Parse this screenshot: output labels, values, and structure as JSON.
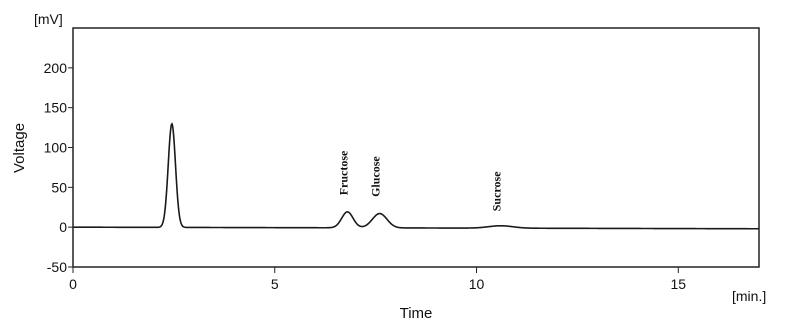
{
  "chart_data": {
    "type": "line",
    "title": "",
    "xlabel": "Time",
    "ylabel": "Voltage",
    "x_unit": "[min.]",
    "y_unit": "[mV]",
    "xlim": [
      0,
      17
    ],
    "ylim": [
      -50,
      250
    ],
    "x_ticks": [
      "0",
      "5",
      "10",
      "15"
    ],
    "y_ticks": [
      "-50",
      "0",
      "50",
      "100",
      "150",
      "200"
    ],
    "grid": false,
    "line_color": "#1a1a1a",
    "series": [
      {
        "baseline": [
          [
            0,
            0
          ],
          [
            17,
            -2
          ]
        ],
        "peaks": [
          {
            "time": 2.45,
            "height": 130,
            "width": 0.09
          },
          {
            "time": 6.8,
            "height": 20,
            "width": 0.14
          },
          {
            "time": 7.6,
            "height": 18,
            "width": 0.18
          },
          {
            "time": 10.6,
            "height": 3,
            "width": 0.3
          }
        ]
      }
    ],
    "annotations": [
      {
        "text": "Fructose",
        "x": 6.8,
        "y": 40
      },
      {
        "text": "Glucose",
        "x": 7.6,
        "y": 38
      },
      {
        "text": "Sucrose",
        "x": 10.6,
        "y": 20
      }
    ]
  }
}
